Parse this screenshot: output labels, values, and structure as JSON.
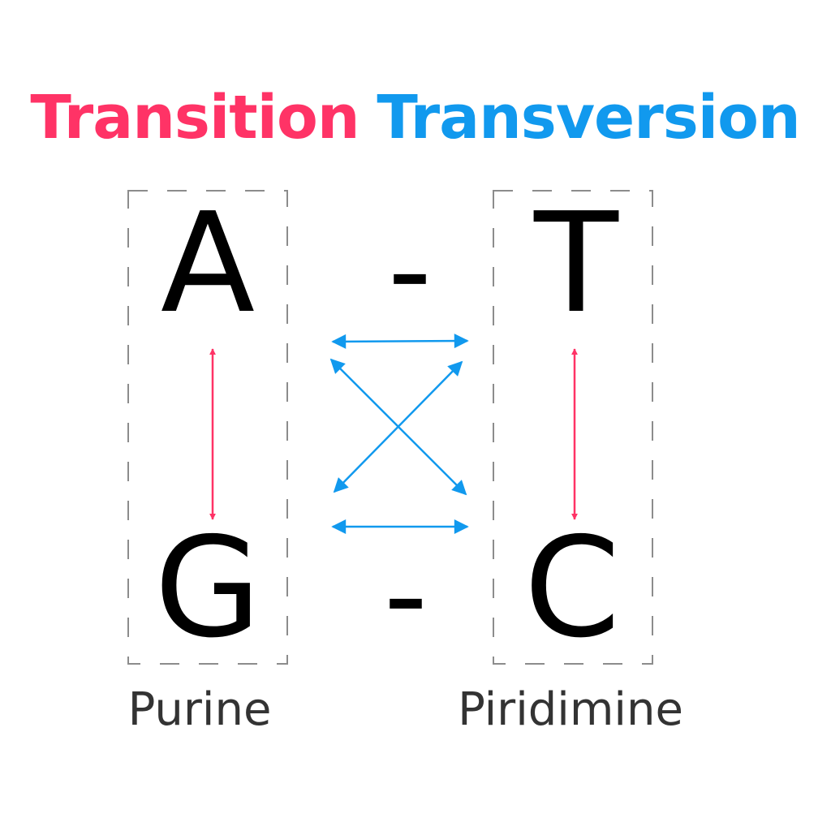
{
  "titles": {
    "transition": "Transition",
    "transversion": "Transversion"
  },
  "bases": {
    "purine_top": "A",
    "purine_bottom": "G",
    "pyrimidine_top": "T",
    "pyrimidine_bottom": "C"
  },
  "pair_separators": {
    "top": "-",
    "bottom": "-"
  },
  "group_labels": {
    "purine": "Purine",
    "pyrimidine": "Piridimine"
  },
  "colors": {
    "transition": "#ff3366",
    "transversion": "#1199ee",
    "base_text": "#000000",
    "group_label": "#333333",
    "group_box": "#8c8c8c"
  }
}
